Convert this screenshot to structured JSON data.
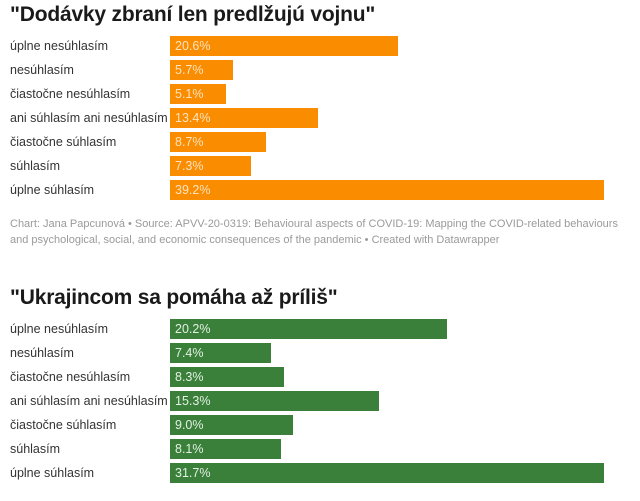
{
  "chart_data": [
    {
      "type": "bar",
      "orientation": "horizontal",
      "title": "\"Dodávky zbraní len predlžujú vojnu\"",
      "categories": [
        "úplne nesúhlasím",
        "nesúhlasím",
        "čiastočne nesúhlasím",
        "ani súhlasím ani nesúhlasím",
        "čiastočne súhlasím",
        "súhlasím",
        "úplne súhlasím"
      ],
      "values": [
        20.6,
        5.7,
        5.1,
        13.4,
        8.7,
        7.3,
        39.2
      ],
      "value_labels": [
        "20.6%",
        "5.7%",
        "5.1%",
        "13.4%",
        "8.7%",
        "7.3%",
        "39.2%"
      ],
      "unit": "%",
      "xlim": [
        0,
        39.2
      ],
      "bar_color": "#fa8c00",
      "value_label_color": "#fde3c0",
      "grid": false,
      "legend": "none",
      "xlabel": "",
      "ylabel": ""
    },
    {
      "type": "bar",
      "orientation": "horizontal",
      "title": "\"Ukrajincom sa pomáha až príliš\"",
      "categories": [
        "úplne nesúhlasím",
        "nesúhlasím",
        "čiastočne nesúhlasím",
        "ani súhlasím ani nesúhlasím",
        "čiastočne súhlasím",
        "súhlasím",
        "úplne súhlasím"
      ],
      "values": [
        20.2,
        7.4,
        8.3,
        15.3,
        9.0,
        8.1,
        31.7
      ],
      "value_labels": [
        "20.2%",
        "7.4%",
        "8.3%",
        "15.3%",
        "9.0%",
        "8.1%",
        "31.7%"
      ],
      "unit": "%",
      "xlim": [
        0,
        31.7
      ],
      "bar_color": "#3a7f3a",
      "value_label_color": "#e3f0e3",
      "grid": false,
      "legend": "none",
      "xlabel": "",
      "ylabel": ""
    }
  ],
  "footer": "Chart: Jana Papcunová • Source: APVV-20-0319: Behavioural aspects of COVID-19: Mapping the COVID-related behaviours and psychological, social, and economic consequences of the pandemic • Created with Datawrapper"
}
